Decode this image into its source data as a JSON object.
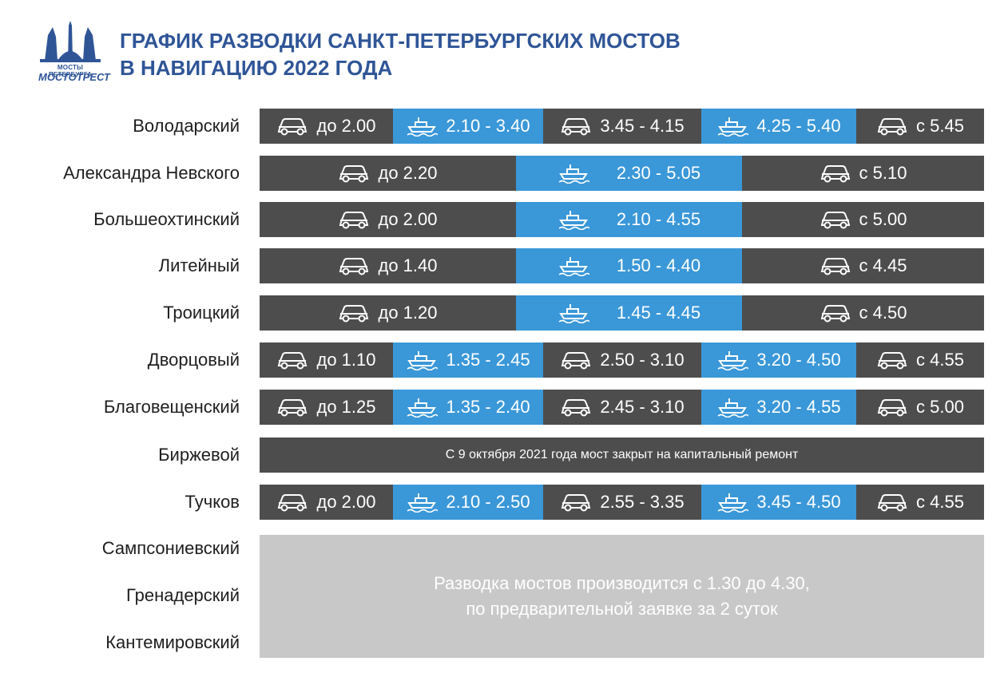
{
  "header": {
    "logo_top": "МОСТЫ ПЕТЕРБУРГА",
    "logo_bottom": "МОСТОТРЕСТ",
    "title_line1": "ГРАФИК РАЗВОДКИ САНКТ-ПЕТЕРБУРГСКИХ МОСТОВ",
    "title_line2": "В НАВИГАЦИЮ 2022 ГОДА"
  },
  "colors": {
    "car": "#4d4d4d",
    "ship": "#3a97d8",
    "accent": "#2f5597",
    "grey": "#c8c8c8"
  },
  "bridges": [
    {
      "name": "Володарский",
      "layout": "five",
      "segments": [
        {
          "type": "car",
          "text": "до 2.00"
        },
        {
          "type": "ship",
          "text": "2.10 - 3.40"
        },
        {
          "type": "car",
          "text": "3.45 - 4.15"
        },
        {
          "type": "ship",
          "text": "4.25 - 5.40"
        },
        {
          "type": "car",
          "text": "с 5.45"
        }
      ]
    },
    {
      "name": "Александра Невского",
      "layout": "three",
      "segments": [
        {
          "type": "car",
          "text": "до 2.20"
        },
        {
          "type": "ship",
          "text": "2.30 - 5.05"
        },
        {
          "type": "car",
          "text": "с 5.10"
        }
      ]
    },
    {
      "name": "Большеохтинский",
      "layout": "three",
      "segments": [
        {
          "type": "car",
          "text": "до 2.00"
        },
        {
          "type": "ship",
          "text": "2.10 - 4.55"
        },
        {
          "type": "car",
          "text": "с 5.00"
        }
      ]
    },
    {
      "name": "Литейный",
      "layout": "three",
      "segments": [
        {
          "type": "car",
          "text": "до 1.40"
        },
        {
          "type": "ship",
          "text": "1.50 - 4.40"
        },
        {
          "type": "car",
          "text": "с 4.45"
        }
      ]
    },
    {
      "name": "Троицкий",
      "layout": "three",
      "segments": [
        {
          "type": "car",
          "text": "до 1.20"
        },
        {
          "type": "ship",
          "text": "1.45 - 4.45"
        },
        {
          "type": "car",
          "text": "с 4.50"
        }
      ]
    },
    {
      "name": "Дворцовый",
      "layout": "five",
      "segments": [
        {
          "type": "car",
          "text": "до 1.10"
        },
        {
          "type": "ship",
          "text": "1.35 - 2.45"
        },
        {
          "type": "car",
          "text": "2.50 - 3.10"
        },
        {
          "type": "ship",
          "text": "3.20 - 4.50"
        },
        {
          "type": "car",
          "text": "с 4.55"
        }
      ]
    },
    {
      "name": "Благовещенский",
      "layout": "five",
      "segments": [
        {
          "type": "car",
          "text": "до 1.25"
        },
        {
          "type": "ship",
          "text": "1.35 - 2.40"
        },
        {
          "type": "car",
          "text": "2.45 - 3.10"
        },
        {
          "type": "ship",
          "text": "3.20 - 4.55"
        },
        {
          "type": "car",
          "text": "с 5.00"
        }
      ]
    },
    {
      "name": "Биржевой",
      "layout": "notice",
      "notice": "С 9 октября 2021 года мост закрыт на капитальный ремонт"
    },
    {
      "name": "Тучков",
      "layout": "five",
      "segments": [
        {
          "type": "car",
          "text": "до 2.00"
        },
        {
          "type": "ship",
          "text": "2.10 - 2.50"
        },
        {
          "type": "car",
          "text": "2.55 - 3.35"
        },
        {
          "type": "ship",
          "text": "3.45 - 4.50"
        },
        {
          "type": "car",
          "text": "с 4.55"
        }
      ]
    }
  ],
  "small_bridges": {
    "names": [
      "Сампсониевский",
      "Гренадерский",
      "Кантемировский"
    ],
    "note_line1": "Разводка мостов производится с 1.30 до 4.30,",
    "note_line2": "по предварительной заявке за 2 суток"
  }
}
